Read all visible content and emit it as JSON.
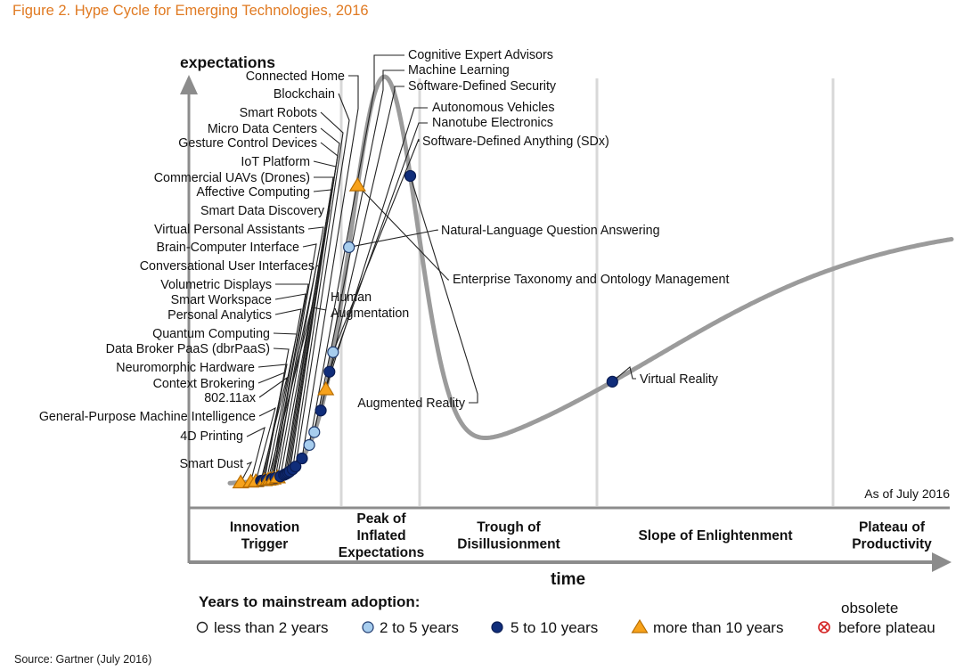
{
  "figure_title": "Figure 2. Hype Cycle for Emerging Technologies, 2016",
  "source": "Source: Gartner (July 2016)",
  "chart_data": {
    "type": "hype-cycle",
    "title": "Figure 2. Hype Cycle for Emerging Technologies, 2016",
    "ylabel": "expectations",
    "xlabel": "time",
    "as_of": "As of July 2016",
    "phases": [
      {
        "name": "Innovation Trigger",
        "lines": [
          "Innovation",
          "Trigger"
        ]
      },
      {
        "name": "Peak of Inflated Expectations",
        "lines": [
          "Peak of",
          "Inflated",
          "Expectations"
        ]
      },
      {
        "name": "Trough of Disillusionment",
        "lines": [
          "Trough of",
          "Disillusionment"
        ]
      },
      {
        "name": "Slope of Enlightenment",
        "lines": [
          "Slope of Enlightenment"
        ]
      },
      {
        "name": "Plateau of Productivity",
        "lines": [
          "Plateau of",
          "Productivity"
        ]
      }
    ],
    "legend": {
      "title": "Years to mainstream adoption:",
      "items": [
        {
          "key": "lt2",
          "label": "less than 2 years"
        },
        {
          "key": "2to5",
          "label": "2 to 5 years"
        },
        {
          "key": "5to10",
          "label": "5 to 10 years"
        },
        {
          "key": "gt10",
          "label": "more than 10 years"
        },
        {
          "key": "obsolete",
          "label": "obsolete before plateau",
          "lines": [
            "obsolete",
            "before plateau"
          ]
        }
      ]
    },
    "marker_styles": {
      "lt2": {
        "shape": "circle",
        "fill": "#ffffff",
        "stroke": "#333333"
      },
      "2to5": {
        "shape": "circle",
        "fill": "#a7cdee",
        "stroke": "#1f3a6e"
      },
      "5to10": {
        "shape": "circle",
        "fill": "#102d7a",
        "stroke": "#0a1c52"
      },
      "gt10": {
        "shape": "triangle",
        "fill": "#f7a21b",
        "stroke": "#b86e00"
      },
      "obsolete": {
        "shape": "crossed-circle",
        "fill": "#ffffff",
        "stroke": "#d32020"
      }
    },
    "colors": {
      "curve": "#9b9b9b",
      "axis": "#8c8c8c",
      "phase_divider": "#d8d8d8",
      "title": "#e07a22"
    },
    "technologies": [
      {
        "name": "Smart Dust",
        "group": "gt10",
        "position": 0.015
      },
      {
        "name": "4D Printing",
        "group": "gt10",
        "position": 0.029
      },
      {
        "name": "General-Purpose Machine Intelligence",
        "group": "gt10",
        "position": 0.036
      },
      {
        "name": "802.11ax",
        "group": "5to10",
        "position": 0.043
      },
      {
        "name": "Context Brokering",
        "group": "5to10",
        "position": 0.045
      },
      {
        "name": "Neuromorphic Hardware",
        "group": "5to10",
        "position": 0.047
      },
      {
        "name": "Data Broker PaaS (dbrPaaS)",
        "group": "gt10",
        "position": 0.048
      },
      {
        "name": "Quantum Computing",
        "group": "5to10",
        "position": 0.051
      },
      {
        "name": "Human Augmentation",
        "group": "gt10",
        "position": 0.053
      },
      {
        "name": "Personal Analytics",
        "group": "gt10",
        "position": 0.056
      },
      {
        "name": "Smart Workspace",
        "group": "5to10",
        "position": 0.058
      },
      {
        "name": "Volumetric Displays",
        "group": "5to10",
        "position": 0.059
      },
      {
        "name": "Conversational User Interfaces",
        "group": "gt10",
        "position": 0.06
      },
      {
        "name": "Brain-Computer Interface",
        "group": "5to10",
        "position": 0.063
      },
      {
        "name": "Virtual Personal Assistants",
        "group": "gt10",
        "position": 0.066
      },
      {
        "name": "Smart Data Discovery",
        "group": "5to10",
        "position": 0.07
      },
      {
        "name": "Affective Computing",
        "group": "5to10",
        "position": 0.075
      },
      {
        "name": "Commercial UAVs (Drones)",
        "group": "5to10",
        "position": 0.077
      },
      {
        "name": "IoT Platform",
        "group": "5to10",
        "position": 0.079
      },
      {
        "name": "Gesture Control Devices",
        "group": "5to10",
        "position": 0.081
      },
      {
        "name": "Micro Data Centers",
        "group": "5to10",
        "position": 0.083
      },
      {
        "name": "Smart Robots",
        "group": "5to10",
        "position": 0.087
      },
      {
        "name": "Blockchain",
        "group": "5to10",
        "position": 0.091
      },
      {
        "name": "Connected Home",
        "group": "5to10",
        "position": 0.1
      },
      {
        "name": "Cognitive Expert Advisors",
        "group": "2to5",
        "position": 0.11
      },
      {
        "name": "Machine Learning",
        "group": "2to5",
        "position": 0.117
      },
      {
        "name": "Software-Defined Security",
        "group": "5to10",
        "position": 0.126
      },
      {
        "name": "Autonomous Vehicles",
        "group": "gt10",
        "position": 0.133
      },
      {
        "name": "Nanotube Electronics",
        "group": "5to10",
        "position": 0.138
      },
      {
        "name": "Software-Defined Anything (SDx)",
        "group": "2to5",
        "position": 0.143
      },
      {
        "name": "Natural-Language Question Answering",
        "group": "2to5",
        "position": 0.165
      },
      {
        "name": "Enterprise Taxonomy and Ontology Management",
        "group": "gt10",
        "position": 0.177
      },
      {
        "name": "Augmented Reality",
        "group": "5to10",
        "position": 0.25
      },
      {
        "name": "Virtual Reality",
        "group": "5to10",
        "position": 0.53
      }
    ]
  }
}
